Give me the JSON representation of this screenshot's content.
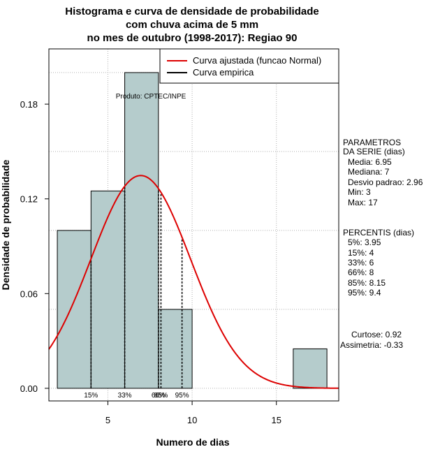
{
  "chart_data": {
    "type": "bar",
    "title": [
      "Histograma e curva de densidade de probabilidade",
      "com chuva acima de 5 mm",
      "no mes de outubro (1998-2017): Regiao 90"
    ],
    "xlabel": "Numero de dias",
    "ylabel": "Densidade de probabilidade",
    "xlim": [
      1.5,
      18.7
    ],
    "ylim": [
      -0.008,
      0.215
    ],
    "x_ticks": [
      5,
      10,
      15
    ],
    "y_ticks": [
      0.0,
      0.06,
      0.12,
      0.18
    ],
    "y_tick_labels": [
      "0.00",
      "0.06",
      "0.12",
      "0.18"
    ],
    "grid": true,
    "bins": [
      {
        "start": 2,
        "end": 4,
        "density": 0.1
      },
      {
        "start": 4,
        "end": 6,
        "density": 0.125
      },
      {
        "start": 6,
        "end": 8,
        "density": 0.2
      },
      {
        "start": 8,
        "end": 10,
        "density": 0.05
      },
      {
        "start": 10,
        "end": 12,
        "density": 0
      },
      {
        "start": 12,
        "end": 14,
        "density": 0
      },
      {
        "start": 14,
        "end": 16,
        "density": 0
      },
      {
        "start": 16,
        "end": 18,
        "density": 0.025
      }
    ],
    "bar_color": "#b5cccc",
    "fitted_curve": {
      "name": "Curva ajustada (funcao Normal)",
      "distribution": "normal",
      "mean": 6.95,
      "sd": 2.96,
      "color": "#dd0000"
    },
    "empirical_curve": {
      "name": "Curva empirica",
      "color": "#000000"
    },
    "legend_position": "top-right",
    "percentile_lines": [
      {
        "label": "15%",
        "x": 4
      },
      {
        "label": "33%",
        "x": 6
      },
      {
        "label": "66%",
        "x": 8
      },
      {
        "label": "85%",
        "x": 8.15
      },
      {
        "label": "95%",
        "x": 9.4
      }
    ],
    "annotation": "Produto: CPTEC/INPE"
  },
  "stats_panel": {
    "parametros_lines": [
      "PARAMETROS",
      "DA SERIE (dias)"
    ],
    "parametros": [
      "Media: 6.95",
      "Mediana: 7",
      "Desvio padrao: 2.96",
      "Min: 3",
      "Max: 17"
    ],
    "percentis_title": "PERCENTIS (dias)",
    "percentis": [
      "5%: 3.95",
      "15%: 4",
      "33%: 6",
      "66%: 8",
      "85%: 8.15",
      "95%: 9.4"
    ],
    "curtose": "Curtose: 0.92",
    "assimetria": "Assimetria: -0.33"
  }
}
